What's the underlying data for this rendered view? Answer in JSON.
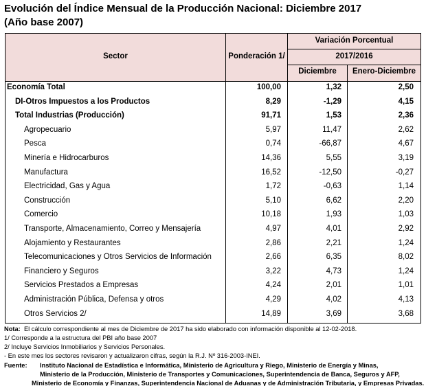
{
  "title": [
    "Evolución del Índice Mensual de la Producción Nacional: Diciembre 2017",
    "(Año base 2007)"
  ],
  "table": {
    "header": {
      "sector": "Sector",
      "weight": "Ponderación 1/",
      "variation": "Variación Porcentual",
      "period": "2017/2016",
      "month": "Diciembre",
      "cumulative": "Enero-Diciembre"
    },
    "rows": [
      [
        "Economía Total",
        "100,00",
        "1,32",
        "2,50"
      ],
      [
        "DI-Otros Impuestos a los Productos",
        "8,29",
        "-1,29",
        "4,15"
      ],
      [
        "Total  Industrias (Producción)",
        "91,71",
        "1,53",
        "2,36"
      ],
      [
        "Agropecuario",
        "5,97",
        "11,47",
        "2,62"
      ],
      [
        "Pesca",
        "0,74",
        "-66,87",
        "4,67"
      ],
      [
        "Minería e Hidrocarburos",
        "14,36",
        "5,55",
        "3,19"
      ],
      [
        "Manufactura",
        "16,52",
        "-12,50",
        "-0,27"
      ],
      [
        "Electricidad, Gas y Agua",
        "1,72",
        "-0,63",
        "1,14"
      ],
      [
        "Construcción",
        "5,10",
        "6,62",
        "2,20"
      ],
      [
        "Comercio",
        "10,18",
        "1,93",
        "1,03"
      ],
      [
        "Transporte, Almacenamiento, Correo y Mensajería",
        "4,97",
        "4,01",
        "2,92"
      ],
      [
        "Alojamiento y Restaurantes",
        "2,86",
        "2,21",
        "1,24"
      ],
      [
        "Telecomunicaciones y Otros Servicios de Información",
        "2,66",
        "6,35",
        "8,02"
      ],
      [
        "Financiero y Seguros",
        "3,22",
        "4,73",
        "1,24"
      ],
      [
        "Servicios Prestados a Empresas",
        "4,24",
        "2,01",
        "1,01"
      ],
      [
        "Administración Pública, Defensa y otros",
        "4,29",
        "4,02",
        "4,13"
      ],
      [
        "Otros Servicios 2/",
        "14,89",
        "3,69",
        "3,68"
      ]
    ]
  },
  "notes": {
    "label": "Nota:",
    "text": "El cálculo correspondiente al mes de Diciembre de 2017 ha sido elaborado con información disponible al 12-02-2018.",
    "lines": [
      "1/ Corresponde a la estructura del PBI año base 2007",
      "2/ Incluye Servicios Inmobiliarios y Servicios Personales.",
      "- En este mes los sectores revisaron y actualizaron cifras, según la R.J. Nº 316-2003-INEI."
    ]
  },
  "source": {
    "label": "Fuente:",
    "lines": [
      "Instituto Nacional de Estadística e Informática, Ministerio de Agricultura y Riego, Ministerio de Energía y Minas,",
      "Ministerio de la Producción, Ministerio de Transportes y Comunicaciones, Superintendencia de Banca, Seguros y AFP,",
      "Ministerio de Economía y Finanzas, Superintendencia Nacional de Aduanas y de Administración Tributaria, y Empresas Privadas."
    ]
  }
}
